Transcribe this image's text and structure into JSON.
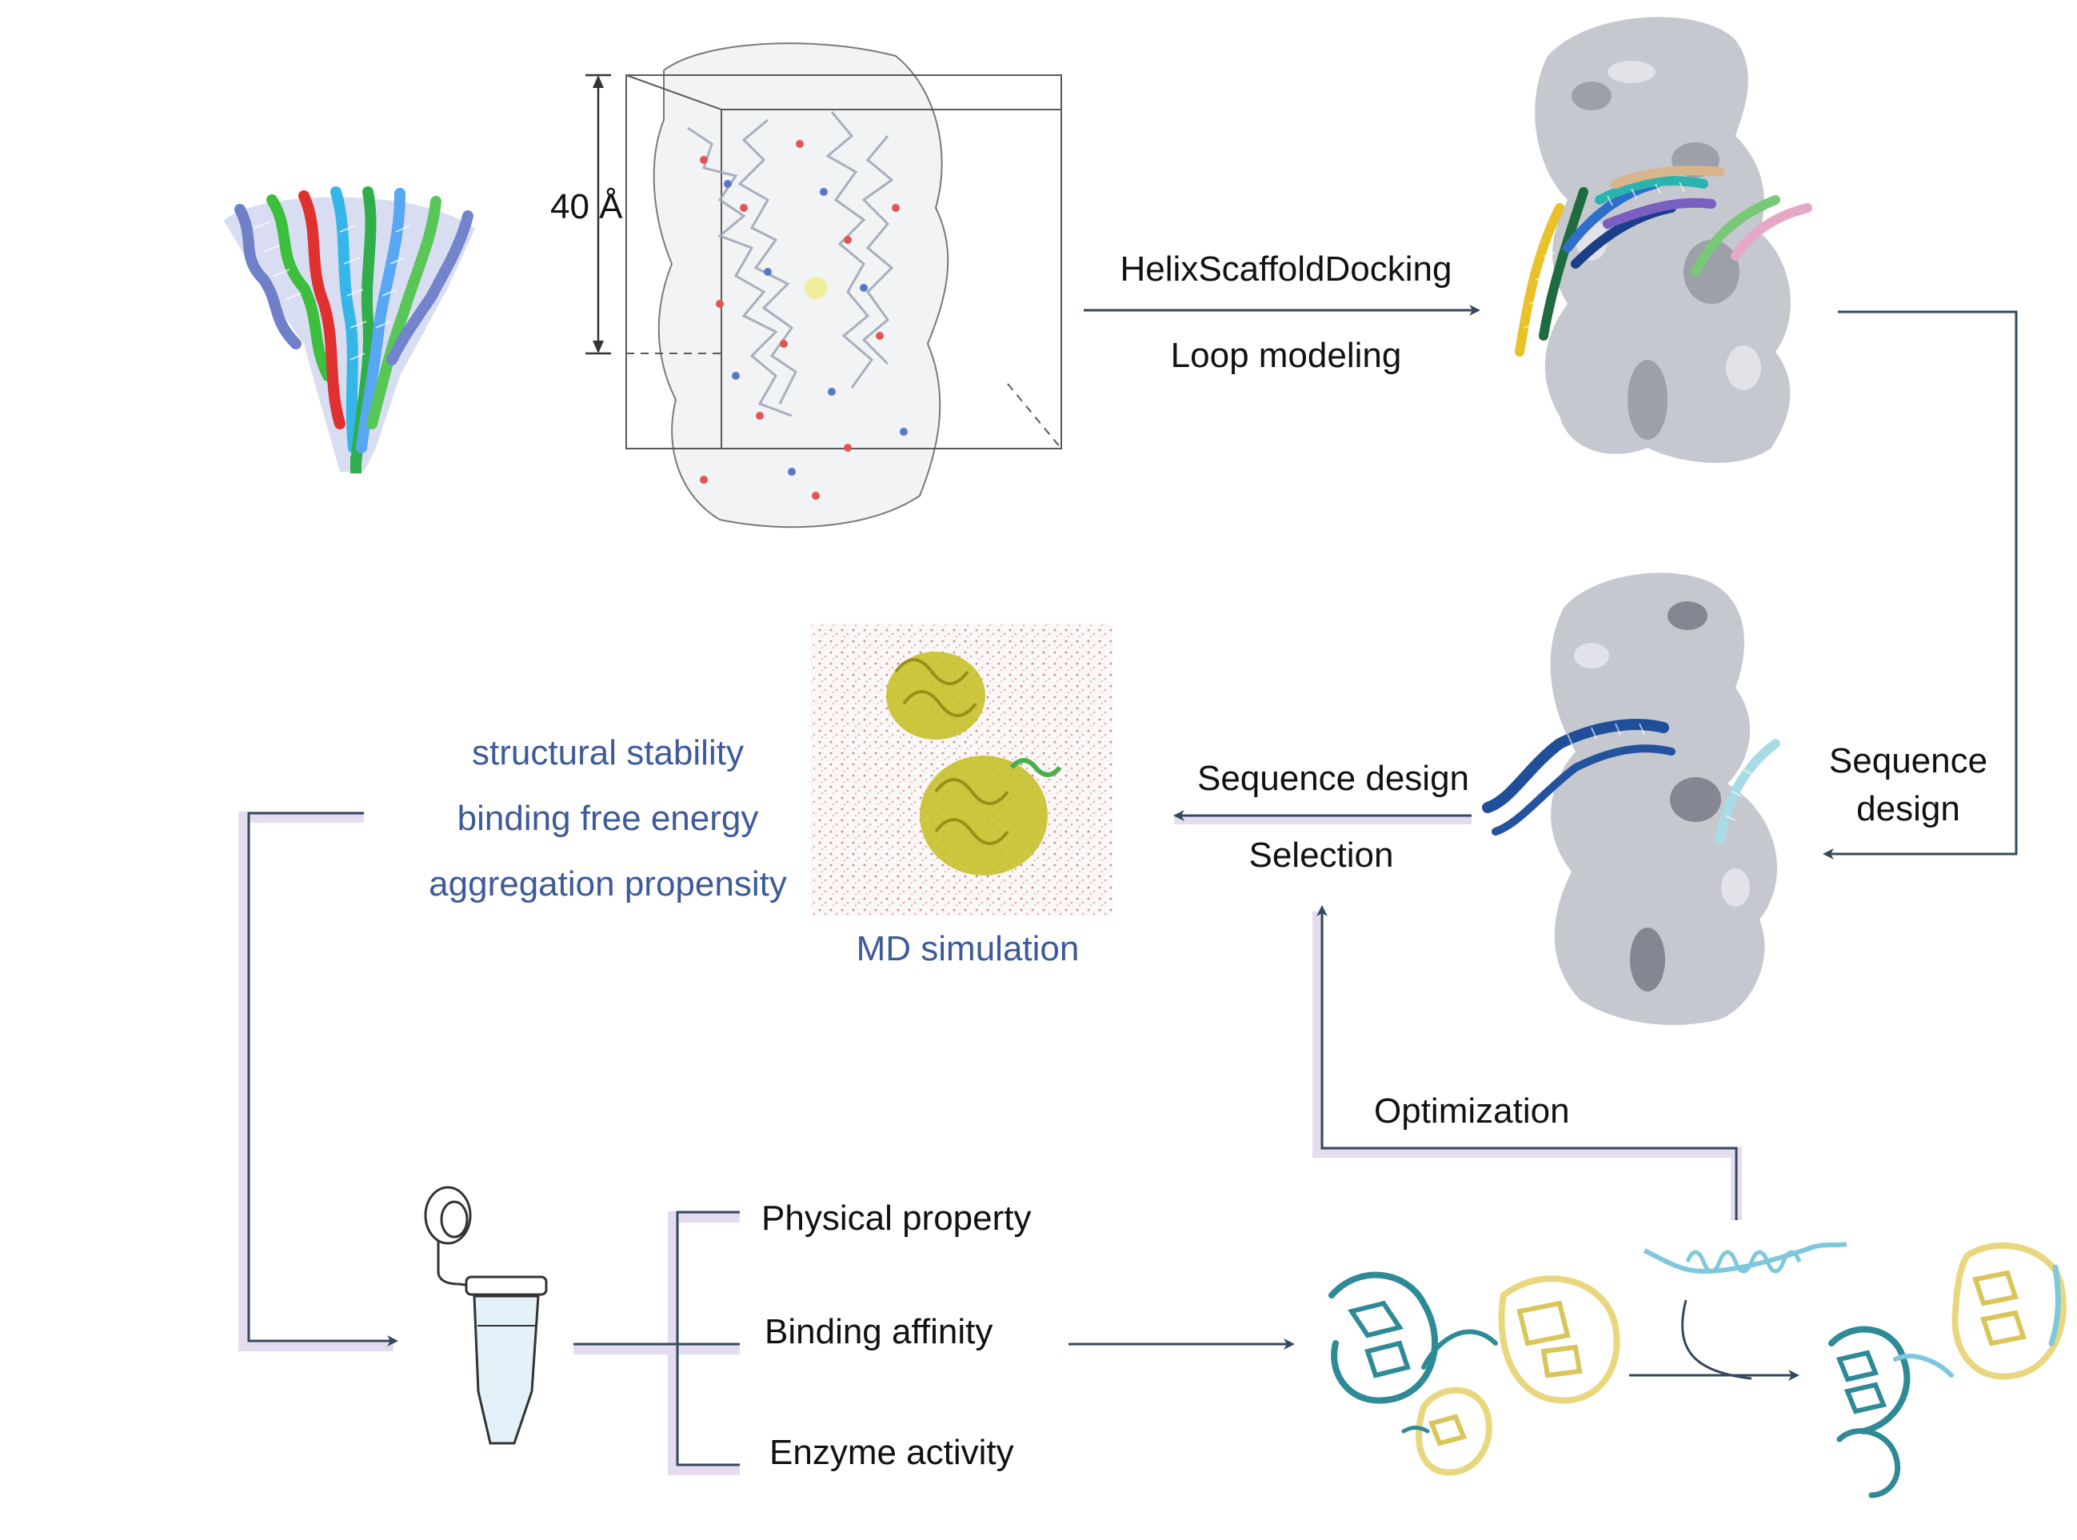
{
  "colors": {
    "arrow": "#34495e",
    "pipe_shadow": "#e6dcef",
    "text": "#111111",
    "accent_text": "#3d5a99",
    "surface_gray": "#c5c8cf",
    "teal": "#2d8a96",
    "gold": "#e9d77f",
    "light_blue": "#7ec8dc",
    "navy": "#1f4f99",
    "tube_fill": "#e3f2f9"
  },
  "icons": {
    "helix_bundle": "helix-bundle-icon",
    "md_box": "md-box-icon",
    "docking_complex": "docking-complex-icon",
    "designed_complex": "designed-complex-icon",
    "md_snapshot": "md-snapshot-icon",
    "tube": "microcentrifuge-tube-icon",
    "enzyme_complex": "enzyme-complex-icon",
    "separated_proteins": "separated-proteins-icon",
    "peptide_helix": "peptide-helix-icon"
  },
  "labels": {
    "dimension": "40 Å",
    "docking_step_1": "HelixScaffoldDocking",
    "docking_step_2": "Loop modeling",
    "right_sequence_design_1": "Sequence",
    "right_sequence_design_2": "design",
    "middle_sequence_design": "Sequence design",
    "selection": "Selection",
    "md_simulation": "MD simulation",
    "optimization": "Optimization"
  },
  "md_metrics": [
    "structural stability",
    "binding free energy",
    "aggregation propensity"
  ],
  "assays": [
    "Physical property",
    "Binding affinity",
    "Enzyme activity"
  ]
}
